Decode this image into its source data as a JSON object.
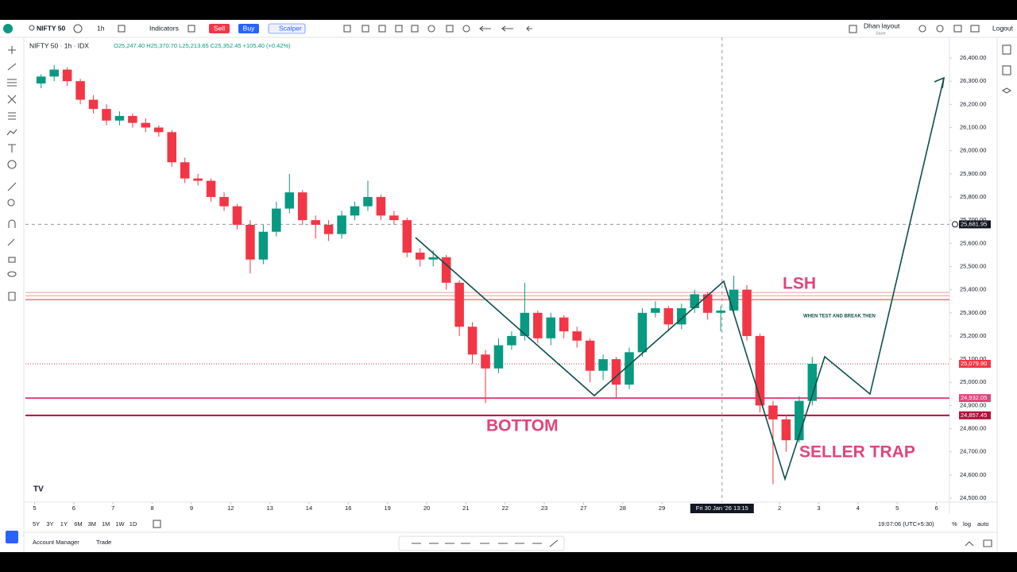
{
  "toolbar": {
    "symbol": "NIFTY 50",
    "interval": "1h",
    "indicators": "Indicators",
    "sell": "Sell",
    "buy": "Buy",
    "scalper": "Scalper",
    "layout": "Dhan layout",
    "save": "Save",
    "logout": "Logout"
  },
  "legend": {
    "title": "NIFTY 50 · 1h · IDX",
    "ohlc": "O25,247.40 H25,370.70 L25,213.65 C25,352.45 +105.40 (+0.42%)"
  },
  "chart_data": {
    "type": "candlestick",
    "up_color": "#089981",
    "down_color": "#f23645",
    "open": [
      26290,
      26320,
      26350,
      26300,
      26220,
      26180,
      26130,
      26150,
      26120,
      26100,
      26080,
      25950,
      25880,
      25870,
      25800,
      25760,
      25680,
      25530,
      25650,
      25750,
      25820,
      25700,
      25680,
      25640,
      25720,
      25760,
      25800,
      25720,
      25700,
      25560,
      25530,
      25540,
      25430,
      25240,
      25120,
      25060,
      25160,
      25200,
      25300,
      25190,
      25280,
      25220,
      25180,
      25050,
      25100,
      24990,
      25130,
      25300,
      25320,
      25250,
      25320,
      25380,
      25300,
      25310,
      25400,
      25200,
      24900,
      24840,
      24750,
      24920
    ],
    "high": [
      26330,
      26370,
      26360,
      26310,
      26240,
      26200,
      26170,
      26160,
      26140,
      26110,
      26090,
      25970,
      25900,
      25880,
      25820,
      25770,
      25700,
      25680,
      25780,
      25900,
      25830,
      25720,
      25700,
      25740,
      25780,
      25870,
      25810,
      25740,
      25710,
      25580,
      25570,
      25550,
      25440,
      25260,
      25140,
      25190,
      25220,
      25430,
      25310,
      25300,
      25290,
      25240,
      25190,
      25120,
      25110,
      25150,
      25320,
      25350,
      25330,
      25340,
      25400,
      25390,
      25330,
      25460,
      25420,
      25210,
      24920,
      24860,
      24940,
      25110
    ],
    "low": [
      26270,
      26300,
      26280,
      26200,
      26160,
      26110,
      26110,
      26100,
      26080,
      26060,
      25930,
      25860,
      25850,
      25780,
      25740,
      25660,
      25470,
      25510,
      25630,
      25730,
      25680,
      25620,
      25610,
      25620,
      25700,
      25740,
      25700,
      25680,
      25540,
      25500,
      25500,
      25400,
      25200,
      25080,
      24910,
      25040,
      25140,
      25180,
      25170,
      25160,
      25190,
      25150,
      25000,
      25010,
      24930,
      24970,
      25110,
      25280,
      25220,
      25230,
      25300,
      25270,
      25220,
      25290,
      25180,
      24870,
      24560,
      24700,
      24740,
      24900
    ],
    "close": [
      26320,
      26350,
      26300,
      26220,
      26180,
      26130,
      26150,
      26120,
      26100,
      26080,
      25950,
      25880,
      25870,
      25800,
      25760,
      25680,
      25530,
      25650,
      25750,
      25820,
      25700,
      25680,
      25640,
      25720,
      25760,
      25800,
      25720,
      25700,
      25560,
      25530,
      25540,
      25430,
      25240,
      25120,
      25060,
      25160,
      25200,
      25300,
      25190,
      25280,
      25220,
      25180,
      25050,
      25100,
      24990,
      25130,
      25300,
      25320,
      25250,
      25320,
      25380,
      25300,
      25310,
      25400,
      25200,
      24900,
      24840,
      24750,
      24920,
      25080
    ],
    "xlim": [
      -0.7,
      70
    ],
    "xticks": [
      {
        "value": 0,
        "label": "5"
      },
      {
        "value": 3,
        "label": "6"
      },
      {
        "value": 6,
        "label": "7"
      },
      {
        "value": 9,
        "label": "8"
      },
      {
        "value": 12,
        "label": "9"
      },
      {
        "value": 15,
        "label": "12"
      },
      {
        "value": 18,
        "label": "13"
      },
      {
        "value": 21,
        "label": "14"
      },
      {
        "value": 24,
        "label": "16"
      },
      {
        "value": 27,
        "label": "19"
      },
      {
        "value": 30,
        "label": "20"
      },
      {
        "value": 33,
        "label": "21"
      },
      {
        "value": 36,
        "label": "22"
      },
      {
        "value": 39,
        "label": "23"
      },
      {
        "value": 42,
        "label": "27"
      },
      {
        "value": 45,
        "label": "28"
      },
      {
        "value": 48,
        "label": "29"
      },
      {
        "value": 57,
        "label": "2"
      },
      {
        "value": 60,
        "label": "3"
      },
      {
        "value": 63,
        "label": "4"
      },
      {
        "value": 66,
        "label": "5"
      },
      {
        "value": 69,
        "label": "6"
      }
    ],
    "ylim": [
      24483,
      26479
    ],
    "yticks": [
      {
        "value": 24500,
        "label": "24,500.00"
      },
      {
        "value": 24600,
        "label": "24,600.00"
      },
      {
        "value": 24700,
        "label": "24,700.00"
      },
      {
        "value": 24800,
        "label": "24,800.00"
      },
      {
        "value": 24900,
        "label": "24,900.00"
      },
      {
        "value": 25000,
        "label": "25,000.00"
      },
      {
        "value": 25100,
        "label": "25,100.00"
      },
      {
        "value": 25200,
        "label": "25,200.00"
      },
      {
        "value": 25300,
        "label": "25,300.00"
      },
      {
        "value": 25400,
        "label": "25,400.00"
      },
      {
        "value": 25500,
        "label": "25,500.00"
      },
      {
        "value": 25600,
        "label": "25,600.00"
      },
      {
        "value": 25700,
        "label": "25,700.00"
      },
      {
        "value": 25800,
        "label": "25,800.00"
      },
      {
        "value": 25900,
        "label": "25,900.00"
      },
      {
        "value": 26000,
        "label": "26,000.00"
      },
      {
        "value": 26100,
        "label": "26,100.00"
      },
      {
        "value": 26200,
        "label": "26,200.00"
      },
      {
        "value": 26300,
        "label": "26,300.00"
      },
      {
        "value": 26400,
        "label": "26,400.00"
      }
    ],
    "levels": [
      {
        "value": 25388,
        "color": "#ef9a9a"
      },
      {
        "value": 25374,
        "color": "#ef9a9a"
      },
      {
        "value": 25357,
        "color": "#e53935"
      },
      {
        "value": 24932.05,
        "label": "24,932.05",
        "color": "#e0457b"
      },
      {
        "value": 24857.45,
        "label": "24,857.45",
        "color": "#b0103c"
      }
    ],
    "last_price": {
      "value": 25079.9,
      "label": "25,079.90",
      "color": "#f23645"
    },
    "crosshair": {
      "x": 52.6,
      "x_label": "Fri 30 Jan '26  13:15",
      "y": 25681.95,
      "y_label": "25,681.95"
    },
    "annotations": {
      "lsh": "LSH",
      "note": "WHEN TEST AND BREAK THEN",
      "bottom": "BOTTOM",
      "trap": "SELLER TRAP"
    }
  },
  "bottom_bar": {
    "ranges": [
      "5Y",
      "3Y",
      "1Y",
      "6M",
      "3M",
      "1M",
      "1W",
      "1D"
    ],
    "clock": "19:07:06 (UTC+5:30)",
    "percent": "%",
    "log": "log",
    "auto": "auto",
    "account": "Account Manager",
    "trade": "Trade"
  }
}
